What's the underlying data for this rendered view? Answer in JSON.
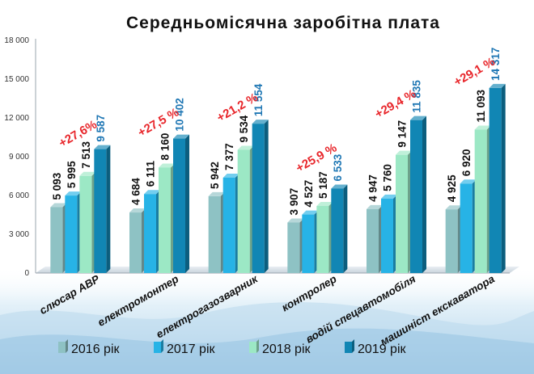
{
  "chart_data": {
    "type": "bar",
    "title": "Середньомісячна заробітна плата",
    "xlabel": "",
    "ylabel": "",
    "ylim": [
      0,
      18000
    ],
    "yticks": [
      "0",
      "3 000",
      "6 000",
      "9 000",
      "12 000",
      "15 000",
      "18 000"
    ],
    "yticks_values": [
      0,
      3000,
      6000,
      9000,
      12000,
      15000,
      18000
    ],
    "grid": false,
    "legend": "bottom",
    "categories": [
      "слюсар АВР",
      "електромонтер",
      "електрогазозварник",
      "контролер",
      "водій спецавтомобіля",
      "машиніст екскаватора"
    ],
    "series": [
      {
        "name": "2016 рік",
        "color": "#8ec2c4",
        "values": [
          5093,
          4684,
          5942,
          3907,
          4947,
          4925
        ],
        "labels": [
          "5 093",
          "4 684",
          "5 942",
          "3 907",
          "4 947",
          "4 925"
        ]
      },
      {
        "name": "2017 рік",
        "color": "#27b3e6",
        "values": [
          5995,
          6111,
          7377,
          4527,
          5760,
          6920
        ],
        "labels": [
          "5 995",
          "6 111",
          "7 377",
          "4 527",
          "5 760",
          "6 920"
        ]
      },
      {
        "name": "2018 рік",
        "color": "#9ce8c5",
        "values": [
          7513,
          8160,
          9534,
          5187,
          9147,
          11093
        ],
        "labels": [
          "7 513",
          "8 160",
          "9 534",
          "5 187",
          "9 147",
          "11 093"
        ]
      },
      {
        "name": "2019 рік",
        "color": "#1186b4",
        "values": [
          9587,
          10402,
          11554,
          6533,
          11835,
          14317
        ],
        "labels": [
          "9 587",
          "10 402",
          "11 554",
          "6 533",
          "11 835",
          "14 317"
        ]
      }
    ],
    "annotations": [
      "+27,6%",
      "+27,5 %",
      "+21,2 %",
      "+25,9 %",
      "+29,4 %",
      "+29,1 %"
    ],
    "label_colors": {
      "dark": "#111111",
      "highlight": "#1f77b4",
      "annotation": "#e8262b"
    }
  }
}
